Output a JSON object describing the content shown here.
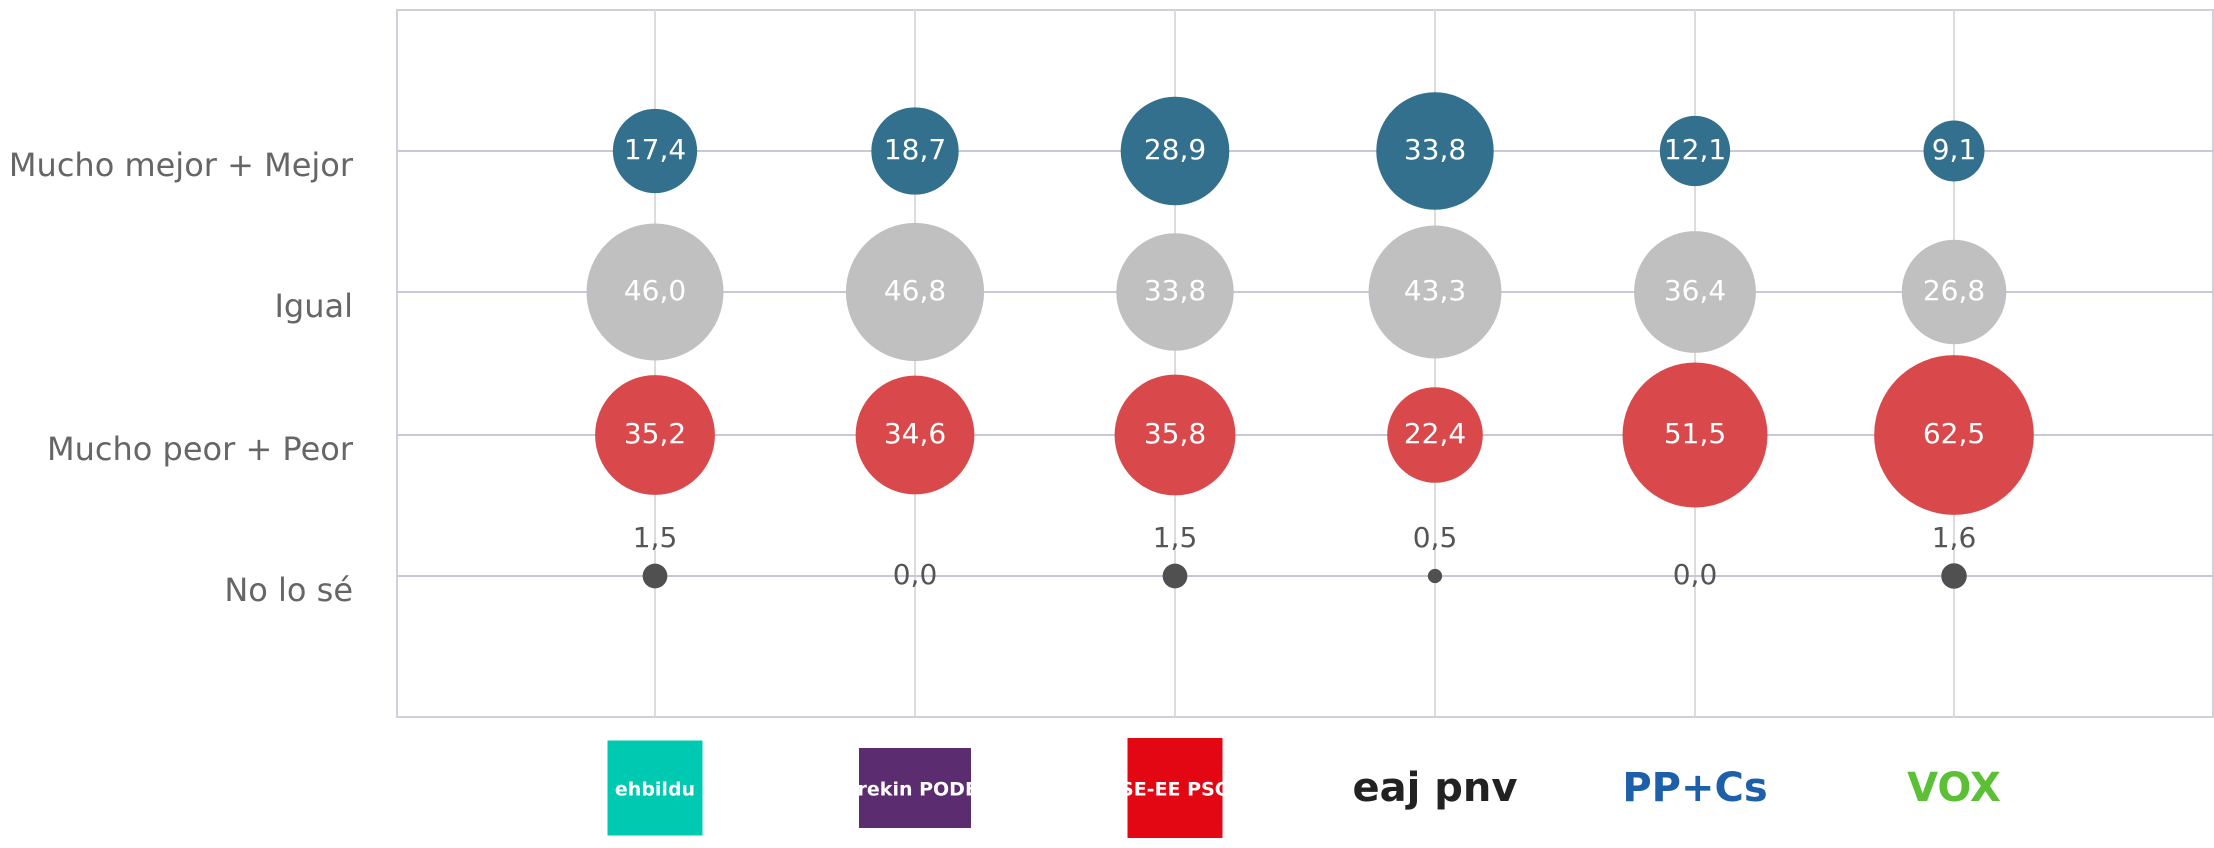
{
  "chart_data": {
    "type": "bubble",
    "x_categories": [
      "ehbildu",
      "elkarrekin PODEMOS",
      "PSE-EE PSOE",
      "eaj pnv",
      "PP+Cs",
      "VOX"
    ],
    "y_categories": [
      "Mucho mejor + Mejor",
      "Igual",
      "Mucho peor + Peor",
      "No lo sé"
    ],
    "series": [
      {
        "name": "Mucho mejor + Mejor",
        "color": "#33708e",
        "values": [
          17.4,
          18.7,
          28.9,
          33.8,
          12.1,
          9.1
        ],
        "value_labels": [
          "17,4",
          "18,7",
          "28,9",
          "33,8",
          "12,1",
          "9,1"
        ]
      },
      {
        "name": "Igual",
        "color": "#c0c0c0",
        "values": [
          46.0,
          46.8,
          33.8,
          43.3,
          36.4,
          26.8
        ],
        "value_labels": [
          "46,0",
          "46,8",
          "33,8",
          "43,3",
          "36,4",
          "26,8"
        ]
      },
      {
        "name": "Mucho peor + Peor",
        "color": "#d9494b",
        "values": [
          35.2,
          34.6,
          35.8,
          22.4,
          51.5,
          62.5
        ],
        "value_labels": [
          "35,2",
          "34,6",
          "35,8",
          "22,4",
          "51,5",
          "62,5"
        ]
      },
      {
        "name": "No lo sé",
        "color": "#505050",
        "values": [
          1.5,
          0.0,
          1.5,
          0.5,
          0.0,
          1.6
        ],
        "value_labels": [
          "1,5",
          "0,0",
          "1,5",
          "0,5",
          "0,0",
          "1,6"
        ]
      }
    ],
    "grid": true
  }
}
